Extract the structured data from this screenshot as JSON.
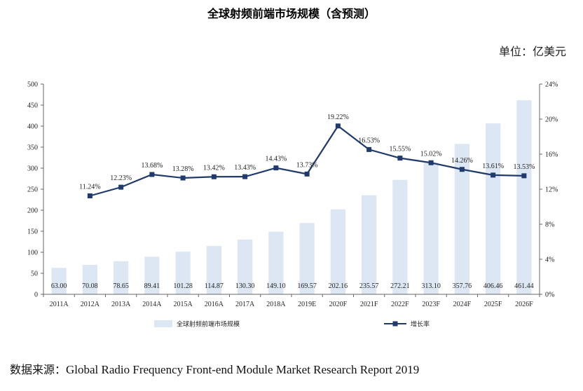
{
  "title": "全球射频前端市场规模（含预测）",
  "unit": "单位：亿美元",
  "source_prefix": "数据来源：",
  "source_text": "Global Radio Frequency Front-end Module Market Research Report 2019",
  "colors": {
    "bar": "#dde7f3",
    "line": "#1f3a6b",
    "axis": "#666666"
  },
  "chart_data": {
    "type": "bar+line",
    "categories": [
      "2011A",
      "2012A",
      "2013A",
      "2014A",
      "2015A",
      "2016A",
      "2017A",
      "2018A",
      "2019E",
      "2020F",
      "2021F",
      "2022F",
      "2023F",
      "2024F",
      "2025F",
      "2026F"
    ],
    "series": [
      {
        "name": "全球射频前端市场规模",
        "type": "bar",
        "axis": "left",
        "values": [
          63.0,
          70.08,
          78.65,
          89.41,
          101.28,
          114.87,
          130.3,
          149.1,
          169.57,
          202.16,
          235.57,
          272.21,
          313.1,
          357.76,
          406.46,
          461.44
        ],
        "labels": [
          "63.00",
          "70.08",
          "78.65",
          "89.41",
          "101.28",
          "114.87",
          "130.30",
          "149.10",
          "169.57",
          "202.16",
          "235.57",
          "272.21",
          "313.10",
          "357.76",
          "406.46",
          "461.44"
        ]
      },
      {
        "name": "增长率",
        "type": "line",
        "axis": "right",
        "values": [
          null,
          11.24,
          12.23,
          13.68,
          13.28,
          13.42,
          13.43,
          14.43,
          13.73,
          19.22,
          16.53,
          15.55,
          15.02,
          14.26,
          13.61,
          13.53
        ],
        "labels": [
          "",
          "11.24%",
          "12.23%",
          "13.68%",
          "13.28%",
          "13.42%",
          "13.43%",
          "14.43%",
          "13.73%",
          "19.22%",
          "16.53%",
          "15.55%",
          "15.02%",
          "14.26%",
          "13.61%",
          "13.53%"
        ]
      }
    ],
    "y_left": {
      "min": 0,
      "max": 500,
      "ticks": [
        "0",
        "50",
        "100",
        "150",
        "200",
        "250",
        "300",
        "350",
        "400",
        "450",
        "500"
      ]
    },
    "y_right": {
      "min": 0,
      "max": 24,
      "ticks": [
        "0%",
        "4%",
        "8%",
        "12%",
        "16%",
        "20%",
        "24%"
      ]
    },
    "legend_position": "bottom",
    "grid": false
  }
}
